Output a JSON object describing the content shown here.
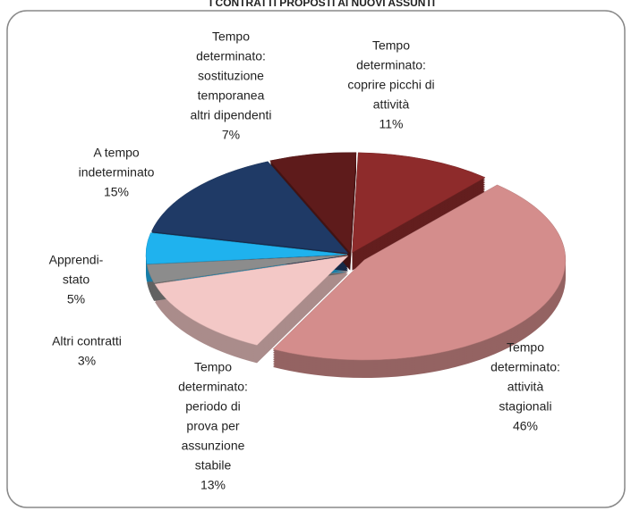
{
  "chart_data": {
    "type": "pie",
    "title": "I CONTRATTI PROPOSTI AI NUOVI ASSUNTI",
    "categories": [
      [
        "Tempo",
        "determinato:",
        "coprire picchi di",
        "attività"
      ],
      [
        "Tempo",
        "determinato:",
        "attività",
        "stagionali"
      ],
      [
        "Tempo",
        "determinato:",
        "periodo di",
        "prova per",
        "assunzione",
        "stabile"
      ],
      [
        "Altri contratti"
      ],
      [
        "Apprendi-",
        "stato"
      ],
      [
        "A tempo",
        "indeterminato"
      ],
      [
        "Tempo",
        "determinato:",
        "sostituzione",
        "temporanea",
        "altri dipendenti"
      ]
    ],
    "values": [
      11,
      46,
      13,
      3,
      5,
      15,
      7
    ],
    "value_labels": [
      "11%",
      "46%",
      "13%",
      "3%",
      "5%",
      "15%",
      "7%"
    ],
    "colors": [
      "#8e2b2b",
      "#d48d8c",
      "#f3c8c6",
      "#8c8c8c",
      "#1fb2ee",
      "#1f3a66",
      "#5e1b1b"
    ]
  }
}
